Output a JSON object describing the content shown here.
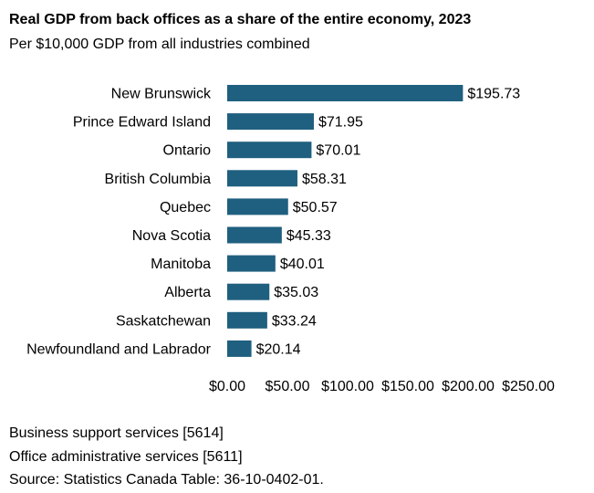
{
  "chart_data": {
    "type": "bar",
    "orientation": "horizontal",
    "title": "Real GDP from back offices as a share of  the entire economy, 2023",
    "subtitle": "Per $10,000 GDP from all industries combined",
    "categories": [
      "New Brunswick",
      "Prince Edward Island",
      "Ontario",
      "British Columbia",
      "Quebec",
      "Nova Scotia",
      "Manitoba",
      "Alberta",
      "Saskatchewan",
      "Newfoundland and Labrador"
    ],
    "values": [
      195.73,
      71.95,
      70.01,
      58.31,
      50.57,
      45.33,
      40.01,
      35.03,
      33.24,
      20.14
    ],
    "value_labels": [
      "$195.73",
      "$71.95",
      "$70.01",
      "$58.31",
      "$50.57",
      "$45.33",
      "$40.01",
      "$35.03",
      "$33.24",
      "$20.14"
    ],
    "xlim": [
      0,
      250
    ],
    "x_ticks": [
      0,
      50,
      100,
      150,
      200,
      250
    ],
    "x_tick_labels": [
      "$0.00",
      "$50.00",
      "$100.00",
      "$150.00",
      "$200.00",
      "$250.00"
    ],
    "grid": false,
    "legend": "none",
    "bar_color": "#1F5F7F"
  },
  "notes": [
    "Business support services  [5614]",
    "Office administrative services  [5611]",
    "Source: Statistics Canada Table: 36-10-0402-01."
  ]
}
